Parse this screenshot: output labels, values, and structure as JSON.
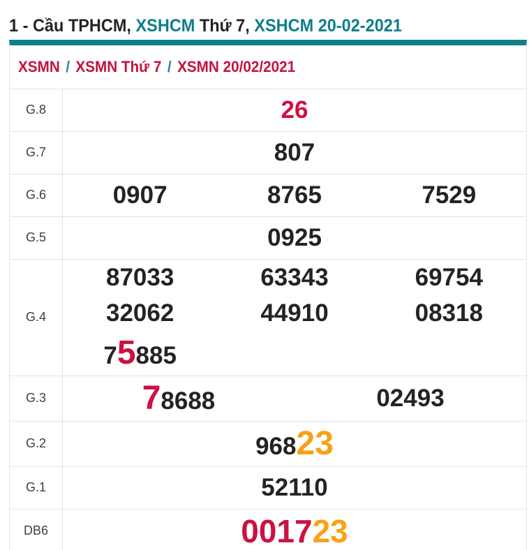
{
  "title": {
    "parts": [
      {
        "text": "1 - Cầu TPHCM, ",
        "color": "dark"
      },
      {
        "text": "XSHCM",
        "color": "teal"
      },
      {
        "text": " Thứ 7, ",
        "color": "dark"
      },
      {
        "text": "XSHCM 20-02-2021",
        "color": "teal"
      }
    ]
  },
  "breadcrumb": {
    "separator": "/",
    "items": [
      {
        "label": "XSMN"
      },
      {
        "label": "XSMN Thứ 7"
      },
      {
        "label": "XSMN 20/02/2021"
      }
    ]
  },
  "results_table": {
    "rows": [
      {
        "key": "g8",
        "label": "G.8",
        "columns": 1,
        "values": [
          [
            {
              "text": "26",
              "color": "red"
            }
          ]
        ]
      },
      {
        "key": "g7",
        "label": "G.7",
        "columns": 1,
        "values": [
          [
            {
              "text": "807"
            }
          ]
        ]
      },
      {
        "key": "g6",
        "label": "G.6",
        "columns": 3,
        "values": [
          [
            {
              "text": "0907"
            }
          ],
          [
            {
              "text": "8765"
            }
          ],
          [
            {
              "text": "7529"
            }
          ]
        ]
      },
      {
        "key": "g5",
        "label": "G.5",
        "columns": 1,
        "values": [
          [
            {
              "text": "0925"
            }
          ]
        ]
      },
      {
        "key": "g4",
        "label": "G.4",
        "columns": 3,
        "values": [
          [
            {
              "text": "87033"
            }
          ],
          [
            {
              "text": "63343"
            }
          ],
          [
            {
              "text": "69754"
            }
          ],
          [
            {
              "text": "32062"
            }
          ],
          [
            {
              "text": "44910"
            }
          ],
          [
            {
              "text": "08318"
            }
          ],
          [
            {
              "text": "7"
            },
            {
              "text": "5",
              "color": "red",
              "size": "big"
            },
            {
              "text": "885"
            }
          ]
        ]
      },
      {
        "key": "g3",
        "label": "G.3",
        "columns": 2,
        "values": [
          [
            {
              "text": "7",
              "color": "red",
              "size": "big"
            },
            {
              "text": "8688"
            }
          ],
          [
            {
              "text": "02493"
            }
          ]
        ]
      },
      {
        "key": "g2",
        "label": "G.2",
        "columns": 1,
        "values": [
          [
            {
              "text": "968"
            },
            {
              "text": "23",
              "color": "orange",
              "size": "big"
            }
          ]
        ]
      },
      {
        "key": "g1",
        "label": "G.1",
        "columns": 1,
        "values": [
          [
            {
              "text": "52110"
            }
          ]
        ]
      },
      {
        "key": "db6",
        "label": "DB6",
        "columns": 1,
        "values": [
          [
            {
              "text": "0017",
              "color": "red",
              "size": "xl"
            },
            {
              "text": "23",
              "color": "orange",
              "size": "xl"
            }
          ]
        ]
      }
    ]
  },
  "colors": {
    "teal": "#0e7e88",
    "red": "#cd1141",
    "orange": "#f8a118",
    "dark": "#232323",
    "breadcrumb_link": "#c3123f",
    "breadcrumb_separator": "#3878a8",
    "border": "#e3e3e3"
  }
}
